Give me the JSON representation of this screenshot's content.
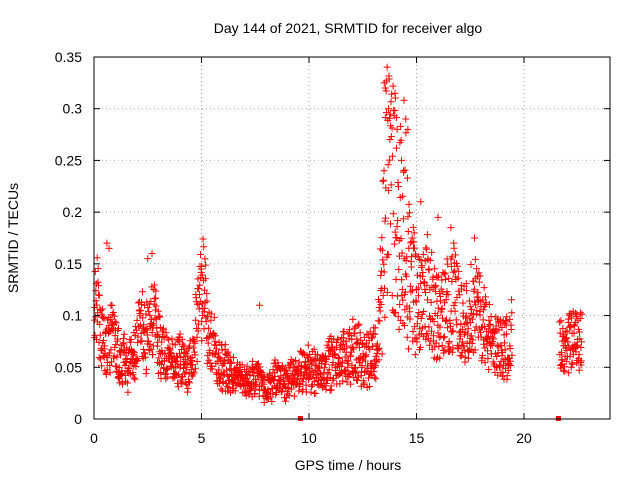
{
  "chart_data": {
    "type": "scatter",
    "title": "Day 144 of 2021, SRMTID for receiver algo",
    "xlabel": "GPS time / hours",
    "ylabel": "SRMTID / TECUs",
    "xlim": [
      0,
      24
    ],
    "ylim": [
      0,
      0.35
    ],
    "xticks": [
      0,
      5,
      10,
      15,
      20
    ],
    "xtick_labels": [
      "0",
      "5",
      "10",
      "15",
      "20"
    ],
    "yticks": [
      0,
      0.05,
      0.1,
      0.15,
      0.2,
      0.25,
      0.3,
      0.35
    ],
    "ytick_labels": [
      "0",
      "0.05",
      "0.1",
      "0.15",
      "0.2",
      "0.25",
      "0.3",
      "0.35"
    ],
    "grid": true,
    "marker": "plus",
    "color": "#ff0000",
    "series": [
      {
        "name": "SRMTID",
        "profile": [
          [
            0.0,
            0.07
          ],
          [
            0.1,
            0.12
          ],
          [
            0.3,
            0.09
          ],
          [
            0.5,
            0.06
          ],
          [
            0.7,
            0.08
          ],
          [
            1.0,
            0.07
          ],
          [
            1.3,
            0.06
          ],
          [
            1.6,
            0.05
          ],
          [
            1.9,
            0.07
          ],
          [
            2.2,
            0.09
          ],
          [
            2.5,
            0.08
          ],
          [
            2.8,
            0.1
          ],
          [
            3.1,
            0.07
          ],
          [
            3.4,
            0.06
          ],
          [
            3.7,
            0.05
          ],
          [
            4.0,
            0.06
          ],
          [
            4.3,
            0.05
          ],
          [
            4.6,
            0.06
          ],
          [
            4.9,
            0.11
          ],
          [
            5.1,
            0.12
          ],
          [
            5.4,
            0.08
          ],
          [
            5.7,
            0.06
          ],
          [
            6.0,
            0.05
          ],
          [
            6.3,
            0.045
          ],
          [
            6.6,
            0.04
          ],
          [
            7.0,
            0.035
          ],
          [
            7.4,
            0.04
          ],
          [
            7.8,
            0.035
          ],
          [
            8.1,
            0.03
          ],
          [
            8.5,
            0.04
          ],
          [
            8.9,
            0.035
          ],
          [
            9.3,
            0.04
          ],
          [
            9.7,
            0.045
          ],
          [
            10.1,
            0.05
          ],
          [
            10.5,
            0.045
          ],
          [
            10.9,
            0.055
          ],
          [
            11.3,
            0.055
          ],
          [
            11.7,
            0.06
          ],
          [
            12.1,
            0.065
          ],
          [
            12.5,
            0.06
          ],
          [
            12.9,
            0.06
          ],
          [
            13.2,
            0.07
          ],
          [
            13.4,
            0.14
          ],
          [
            13.6,
            0.22
          ],
          [
            13.8,
            0.23
          ],
          [
            14.0,
            0.21
          ],
          [
            14.2,
            0.18
          ],
          [
            14.4,
            0.2
          ],
          [
            14.6,
            0.16
          ],
          [
            14.8,
            0.13
          ],
          [
            15.0,
            0.11
          ],
          [
            15.3,
            0.13
          ],
          [
            15.6,
            0.12
          ],
          [
            15.9,
            0.1
          ],
          [
            16.2,
            0.1
          ],
          [
            16.5,
            0.11
          ],
          [
            16.8,
            0.12
          ],
          [
            17.1,
            0.09
          ],
          [
            17.4,
            0.1
          ],
          [
            17.7,
            0.11
          ],
          [
            18.0,
            0.1
          ],
          [
            18.3,
            0.08
          ],
          [
            18.6,
            0.07
          ],
          [
            18.9,
            0.07
          ],
          [
            19.2,
            0.07
          ],
          [
            19.4,
            0.08
          ],
          [
            21.7,
            0.07
          ],
          [
            21.9,
            0.06
          ],
          [
            22.1,
            0.07
          ],
          [
            22.3,
            0.08
          ],
          [
            22.5,
            0.07
          ],
          [
            22.7,
            0.09
          ]
        ],
        "gaps": [
          [
            19.45,
            21.65
          ]
        ],
        "peaks": [
          [
            0.6,
            0.17
          ],
          [
            0.7,
            0.165
          ],
          [
            2.5,
            0.155
          ],
          [
            2.7,
            0.16
          ],
          [
            5.0,
            0.145
          ],
          [
            13.5,
            0.325
          ],
          [
            13.55,
            0.32
          ],
          [
            13.7,
            0.3
          ],
          [
            14.0,
            0.315
          ],
          [
            14.1,
            0.28
          ],
          [
            14.5,
            0.29
          ],
          [
            14.6,
            0.28
          ],
          [
            14.3,
            0.25
          ],
          [
            14.4,
            0.24
          ],
          [
            15.2,
            0.21
          ],
          [
            16.0,
            0.195
          ],
          [
            16.6,
            0.185
          ],
          [
            17.7,
            0.175
          ],
          [
            7.7,
            0.11
          ]
        ],
        "flagged_zero": [
          9.6,
          21.6
        ]
      }
    ]
  }
}
